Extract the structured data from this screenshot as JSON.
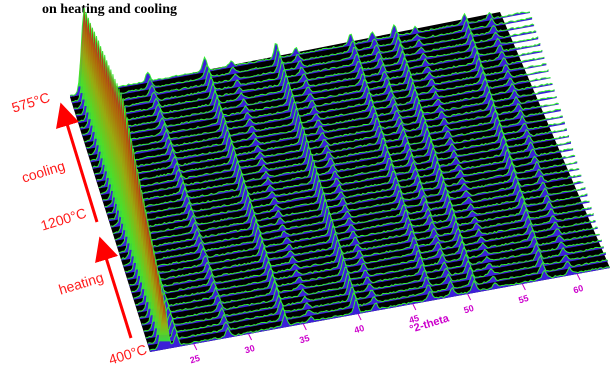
{
  "page": {
    "title": "on heating and cooling"
  },
  "annotations": {
    "temp_start": "400°C",
    "temp_peak": "1200°C",
    "temp_end": "575°C",
    "heating": "heating",
    "cooling": "cooling"
  },
  "chart_data": {
    "type": "area",
    "style": "3d waterfall of stacked diffraction patterns",
    "xlabel": "°2-theta",
    "ylabel": "",
    "x_ticks": [
      25,
      30,
      35,
      40,
      45,
      50,
      55,
      60
    ],
    "xlim": [
      21,
      63
    ],
    "pattern_count": 40,
    "temperature_program": [
      "400°C",
      "1200°C",
      "575°C"
    ],
    "segments": [
      "heating",
      "cooling"
    ],
    "peaks_2theta": [
      22.3,
      23.4,
      28.1,
      33.3,
      35.7,
      39.8,
      41.6,
      46.6,
      48.6,
      50.6,
      52.5,
      57.0,
      59.3
    ],
    "max_intensity_peak_2theta": 22.3,
    "colors": {
      "surface_fill": "#3b1fd8",
      "pattern_line": "#33ee33",
      "floor": "#000000",
      "tall_peak_gradient": [
        "#33ee33",
        "#cc2200"
      ],
      "axis_text": "#cc00cc",
      "arrow": "#ff0000"
    }
  }
}
